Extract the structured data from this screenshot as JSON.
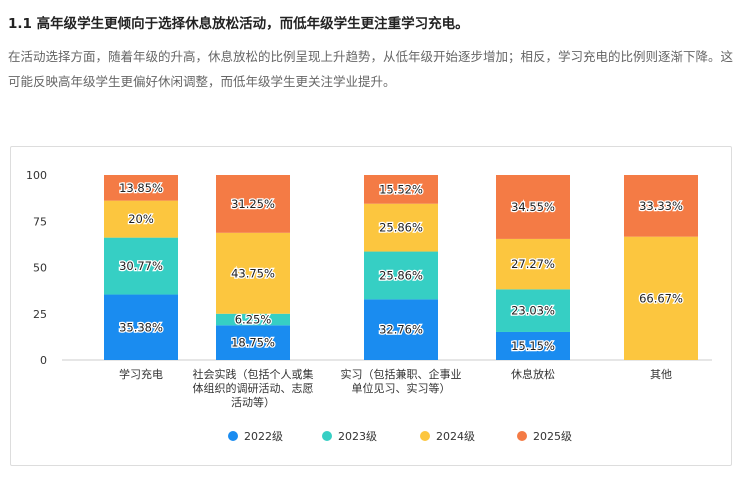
{
  "heading": "1.1 高年级学生更倾向于选择休息放松活动，而低年级学生更注重学习充电。",
  "paragraph": "在活动选择方面，随着年级的升高，休息放松的比例呈现上升趋势，从低年级开始逐步增加；相反，学习充电的比例则逐渐下降。这可能反映高年级学生更偏好休闲调整，而低年级学生更关注学业提升。",
  "chart_data": {
    "type": "bar",
    "stacked": true,
    "categories": [
      [
        "学习充电"
      ],
      [
        "社会实践（包括个人或集",
        "体组织的调研活动、志愿",
        "活动等）"
      ],
      [
        "实习（包括兼职、企事业",
        "单位见习、实习等）"
      ],
      [
        "休息放松"
      ],
      [
        "其他"
      ]
    ],
    "series": [
      {
        "name": "2022级",
        "color": "#1a8cf0",
        "values": [
          35.38,
          18.75,
          32.76,
          15.15,
          0
        ],
        "labels": [
          "35.38%",
          "18.75%",
          "32.76%",
          "15.15%",
          ""
        ]
      },
      {
        "name": "2023级",
        "color": "#36cfc4",
        "values": [
          30.77,
          6.25,
          25.86,
          23.03,
          0
        ],
        "labels": [
          "30.77%",
          "6.25%",
          "25.86%",
          "23.03%",
          ""
        ]
      },
      {
        "name": "2024级",
        "color": "#fcc63f",
        "values": [
          20,
          43.75,
          25.86,
          27.27,
          66.67
        ],
        "labels": [
          "20%",
          "43.75%",
          "25.86%",
          "27.27%",
          "66.67%"
        ]
      },
      {
        "name": "2025级",
        "color": "#f47b45",
        "values": [
          13.85,
          31.25,
          15.52,
          34.55,
          33.33
        ],
        "labels": [
          "13.85%",
          "31.25%",
          "15.52%",
          "34.55%",
          "33.33%"
        ]
      }
    ],
    "yticks": [
      0,
      25,
      50,
      75,
      100
    ],
    "ylim": [
      0,
      100
    ],
    "legend": "bottom",
    "grid": false
  }
}
